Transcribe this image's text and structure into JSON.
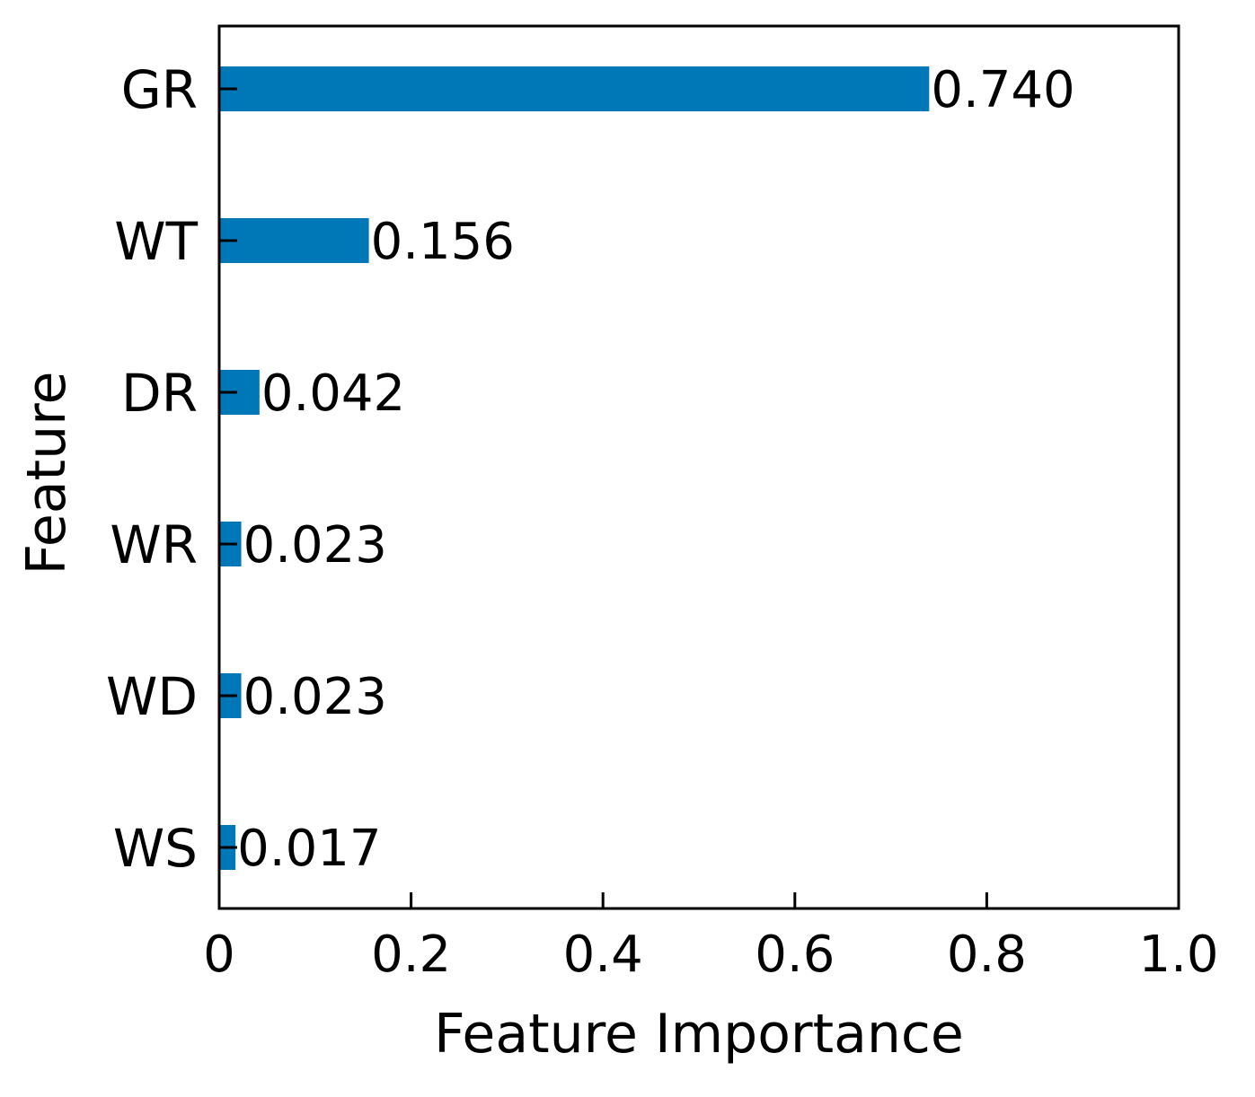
{
  "chart_data": {
    "type": "bar",
    "orientation": "horizontal",
    "categories": [
      "GR",
      "WT",
      "DR",
      "WR",
      "WD",
      "WS"
    ],
    "values": [
      0.74,
      0.156,
      0.042,
      0.023,
      0.023,
      0.017
    ],
    "data_labels": [
      "0.740",
      "0.156",
      "0.042",
      "0.023",
      "0.023",
      "0.017"
    ],
    "xlabel": "Feature Importance",
    "ylabel": "Feature",
    "xlim": [
      0,
      1.0
    ],
    "xticks": [
      0,
      0.2,
      0.4,
      0.6,
      0.8,
      1.0
    ],
    "xtick_labels": [
      "0",
      "0.2",
      "0.4",
      "0.6",
      "0.8",
      "1.0"
    ],
    "bar_color": "#0077b6",
    "grid": false,
    "legend": "none"
  }
}
